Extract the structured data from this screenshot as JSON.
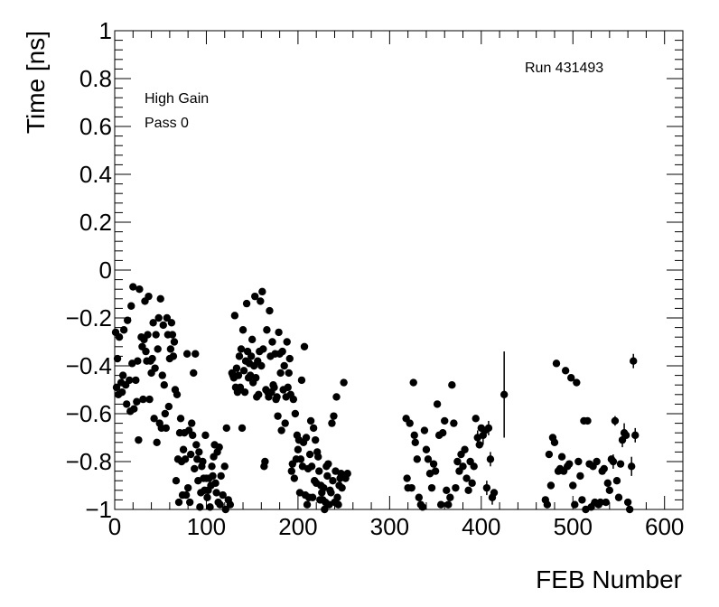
{
  "chart_data": {
    "type": "scatter",
    "xlabel": "FEB Number",
    "ylabel": "Time [ns]",
    "xlim": [
      0,
      620
    ],
    "ylim": [
      -1,
      1
    ],
    "xticks": [
      0,
      100,
      200,
      300,
      400,
      500,
      600
    ],
    "yticks": [
      -1,
      -0.8,
      -0.6,
      -0.4,
      -0.2,
      0,
      0.2,
      0.4,
      0.6,
      0.8,
      1
    ],
    "xtick_labels": [
      "0",
      "100",
      "200",
      "300",
      "400",
      "500",
      "600"
    ],
    "ytick_labels": [
      "−1",
      "−0.8",
      "−0.6",
      "−0.4",
      "−0.2",
      "0",
      "0.2",
      "0.4",
      "0.6",
      "0.8",
      "1"
    ],
    "annotations": {
      "run": "Run 431493",
      "gain": "High Gain",
      "pass": "Pass 0"
    },
    "grid": false,
    "marker_color": "#000000",
    "points": [
      [
        1,
        -0.26
      ],
      [
        2,
        -0.49
      ],
      [
        3,
        -0.37
      ],
      [
        4,
        -0.52
      ],
      [
        5,
        -0.28
      ],
      [
        7,
        -0.47
      ],
      [
        8,
        -0.51
      ],
      [
        9,
        -0.44
      ],
      [
        10,
        -0.25
      ],
      [
        12,
        -0.48
      ],
      [
        13,
        -0.56
      ],
      [
        14,
        -0.21
      ],
      [
        16,
        -0.46
      ],
      [
        17,
        -0.59
      ],
      [
        18,
        -0.15
      ],
      [
        19,
        -0.39
      ],
      [
        20,
        -0.07
      ],
      [
        21,
        -0.58
      ],
      [
        23,
        -0.46
      ],
      [
        24,
        -0.55
      ],
      [
        25,
        -0.38
      ],
      [
        26,
        -0.71
      ],
      [
        27,
        -0.08
      ],
      [
        29,
        -0.28
      ],
      [
        30,
        -0.32
      ],
      [
        31,
        -0.54
      ],
      [
        32,
        -0.29
      ],
      [
        33,
        -0.13
      ],
      [
        34,
        -0.34
      ],
      [
        35,
        -0.38
      ],
      [
        36,
        -0.27
      ],
      [
        37,
        -0.11
      ],
      [
        38,
        -0.54
      ],
      [
        39,
        -0.38
      ],
      [
        40,
        -0.43
      ],
      [
        41,
        -0.37
      ],
      [
        42,
        -0.22
      ],
      [
        43,
        -0.62
      ],
      [
        44,
        -0.41
      ],
      [
        45,
        -0.27
      ],
      [
        46,
        -0.72
      ],
      [
        47,
        -0.33
      ],
      [
        48,
        -0.2
      ],
      [
        49,
        -0.64
      ],
      [
        50,
        -0.12
      ],
      [
        51,
        -0.66
      ],
      [
        52,
        -0.44
      ],
      [
        53,
        -0.23
      ],
      [
        54,
        -0.48
      ],
      [
        55,
        -0.6
      ],
      [
        56,
        -0.66
      ],
      [
        57,
        -0.2
      ],
      [
        58,
        -0.27
      ],
      [
        59,
        -0.57
      ],
      [
        60,
        -0.37
      ],
      [
        61,
        -0.33
      ],
      [
        62,
        -0.22
      ],
      [
        63,
        -0.27
      ],
      [
        64,
        -0.36
      ],
      [
        65,
        -0.3
      ],
      [
        66,
        -0.5
      ],
      [
        67,
        -0.88
      ],
      [
        68,
        -0.52
      ],
      [
        69,
        -0.79
      ],
      [
        70,
        -0.97
      ],
      [
        71,
        -0.68
      ],
      [
        72,
        -0.62
      ],
      [
        73,
        -0.8
      ],
      [
        74,
        -0.94
      ],
      [
        75,
        -0.75
      ],
      [
        76,
        -0.68
      ],
      [
        77,
        -0.79
      ],
      [
        78,
        -0.94
      ],
      [
        79,
        -0.35
      ],
      [
        80,
        -0.91
      ],
      [
        81,
        -0.67
      ],
      [
        82,
        -0.97
      ],
      [
        83,
        -0.77
      ],
      [
        84,
        -0.64
      ],
      [
        85,
        -0.69
      ],
      [
        86,
        -0.43
      ],
      [
        87,
        -0.83
      ],
      [
        88,
        -0.35
      ],
      [
        89,
        -0.73
      ],
      [
        90,
        -0.79
      ],
      [
        91,
        -0.88
      ],
      [
        92,
        -0.76
      ],
      [
        93,
        -0.99
      ],
      [
        94,
        -0.93
      ],
      [
        95,
        -0.82
      ],
      [
        96,
        -0.8
      ],
      [
        97,
        -0.87
      ],
      [
        98,
        -0.92
      ],
      [
        99,
        -0.69
      ],
      [
        100,
        -0.87
      ],
      [
        101,
        -0.95
      ],
      [
        102,
        -0.92
      ],
      [
        103,
        -0.87
      ],
      [
        104,
        -0.99
      ],
      [
        105,
        -0.9
      ],
      [
        106,
        -0.82
      ],
      [
        107,
        -0.86
      ],
      [
        108,
        -0.78
      ],
      [
        109,
        -0.73
      ],
      [
        110,
        -0.89
      ],
      [
        111,
        -0.93
      ],
      [
        112,
        -0.76
      ],
      [
        113,
        -0.97
      ],
      [
        114,
        -0.74
      ],
      [
        115,
        -0.98
      ],
      [
        116,
        -0.86
      ],
      [
        118,
        -0.94
      ],
      [
        120,
        -0.82
      ],
      [
        121,
        -1.0
      ],
      [
        122,
        -0.66
      ],
      [
        124,
        -0.96
      ],
      [
        126,
        -0.98
      ],
      [
        128,
        -0.43
      ],
      [
        129,
        -0.44
      ],
      [
        130,
        -0.45
      ],
      [
        131,
        -0.19
      ],
      [
        132,
        -0.49
      ],
      [
        133,
        -0.41
      ],
      [
        134,
        -0.51
      ],
      [
        135,
        -0.44
      ],
      [
        136,
        -0.36
      ],
      [
        137,
        -0.49
      ],
      [
        138,
        -0.33
      ],
      [
        139,
        -0.66
      ],
      [
        140,
        -0.25
      ],
      [
        141,
        -0.42
      ],
      [
        142,
        -0.51
      ],
      [
        143,
        -0.38
      ],
      [
        144,
        -0.14
      ],
      [
        145,
        -0.34
      ],
      [
        146,
        -0.45
      ],
      [
        147,
        -0.39
      ],
      [
        148,
        -0.44
      ],
      [
        149,
        -0.36
      ],
      [
        150,
        -0.29
      ],
      [
        151,
        -0.47
      ],
      [
        152,
        -0.4
      ],
      [
        153,
        -0.11
      ],
      [
        154,
        -0.45
      ],
      [
        155,
        -0.53
      ],
      [
        156,
        -0.38
      ],
      [
        157,
        -0.52
      ],
      [
        158,
        -0.34
      ],
      [
        159,
        -0.13
      ],
      [
        160,
        -0.4
      ],
      [
        161,
        -0.09
      ],
      [
        162,
        -0.33
      ],
      [
        163,
        -0.82
      ],
      [
        164,
        -0.8
      ],
      [
        165,
        -0.5
      ],
      [
        166,
        -0.25
      ],
      [
        167,
        -0.51
      ],
      [
        168,
        -0.53
      ],
      [
        169,
        -0.17
      ],
      [
        170,
        -0.36
      ],
      [
        171,
        -0.51
      ],
      [
        172,
        -0.3
      ],
      [
        173,
        -0.48
      ],
      [
        174,
        -0.49
      ],
      [
        175,
        -0.35
      ],
      [
        176,
        -0.54
      ],
      [
        177,
        -0.53
      ],
      [
        178,
        -0.61
      ],
      [
        179,
        -0.26
      ],
      [
        180,
        -0.35
      ],
      [
        181,
        -0.43
      ],
      [
        182,
        -0.67
      ],
      [
        183,
        -0.34
      ],
      [
        184,
        -0.5
      ],
      [
        185,
        -0.4
      ],
      [
        186,
        -0.64
      ],
      [
        187,
        -0.53
      ],
      [
        188,
        -0.3
      ],
      [
        189,
        -0.49
      ],
      [
        190,
        -0.43
      ],
      [
        191,
        -0.37
      ],
      [
        192,
        -0.52
      ],
      [
        193,
        -0.84
      ],
      [
        194,
        -0.81
      ],
      [
        195,
        -0.54
      ],
      [
        196,
        -0.87
      ],
      [
        197,
        -0.6
      ],
      [
        198,
        -0.79
      ],
      [
        199,
        -0.69
      ],
      [
        200,
        -0.75
      ],
      [
        201,
        -0.71
      ],
      [
        202,
        -0.93
      ],
      [
        203,
        -0.79
      ],
      [
        204,
        -0.46
      ],
      [
        205,
        -0.82
      ],
      [
        206,
        -0.72
      ],
      [
        207,
        -0.32
      ],
      [
        208,
        -0.94
      ],
      [
        209,
        -0.7
      ],
      [
        210,
        -0.98
      ],
      [
        211,
        -0.83
      ],
      [
        212,
        -0.95
      ],
      [
        213,
        -0.77
      ],
      [
        214,
        -0.63
      ],
      [
        215,
        -0.82
      ],
      [
        216,
        -0.95
      ],
      [
        217,
        -0.66
      ],
      [
        218,
        -0.88
      ],
      [
        219,
        -0.71
      ],
      [
        220,
        -0.89
      ],
      [
        221,
        -0.76
      ],
      [
        222,
        -0.78
      ],
      [
        223,
        -0.84
      ],
      [
        224,
        -0.96
      ],
      [
        225,
        -0.9
      ],
      [
        226,
        -0.93
      ],
      [
        227,
        -0.96
      ],
      [
        228,
        -0.91
      ],
      [
        229,
        -1.0
      ],
      [
        230,
        -0.97
      ],
      [
        231,
        -0.82
      ],
      [
        232,
        -0.86
      ],
      [
        233,
        -0.81
      ],
      [
        234,
        -0.98
      ],
      [
        235,
        -0.92
      ],
      [
        236,
        -0.93
      ],
      [
        237,
        -0.64
      ],
      [
        238,
        -0.88
      ],
      [
        239,
        -0.61
      ],
      [
        240,
        -0.97
      ],
      [
        241,
        -0.84
      ],
      [
        242,
        -0.53
      ],
      [
        243,
        -0.95
      ],
      [
        244,
        -0.98
      ],
      [
        245,
        -0.9
      ],
      [
        246,
        -0.87
      ],
      [
        247,
        -0.85
      ],
      [
        248,
        -0.91
      ],
      [
        250,
        -0.47
      ],
      [
        252,
        -0.87
      ],
      [
        254,
        -0.85
      ],
      [
        318,
        -0.62
      ],
      [
        319,
        -0.87
      ],
      [
        320,
        -0.91
      ],
      [
        322,
        -0.64
      ],
      [
        324,
        -0.91
      ],
      [
        326,
        -0.47
      ],
      [
        327,
        -0.69
      ],
      [
        328,
        -0.72
      ],
      [
        330,
        -0.79
      ],
      [
        332,
        -0.95
      ],
      [
        334,
        -0.98
      ],
      [
        336,
        -0.99
      ],
      [
        338,
        -0.67
      ],
      [
        340,
        -0.75
      ],
      [
        342,
        -0.79
      ],
      [
        344,
        -0.85
      ],
      [
        346,
        -0.91
      ],
      [
        348,
        -0.81
      ],
      [
        350,
        -0.84
      ],
      [
        352,
        -0.56
      ],
      [
        354,
        -0.69
      ],
      [
        356,
        -0.98
      ],
      [
        358,
        -0.68
      ],
      [
        360,
        -0.63
      ],
      [
        362,
        -0.92
      ],
      [
        364,
        -0.98
      ],
      [
        366,
        -0.95
      ],
      [
        368,
        -0.48
      ],
      [
        370,
        -0.64
      ],
      [
        372,
        -0.91
      ],
      [
        374,
        -0.8
      ],
      [
        376,
        -0.84
      ],
      [
        378,
        -0.77
      ],
      [
        380,
        -0.82
      ],
      [
        382,
        -0.75
      ],
      [
        384,
        -0.87
      ],
      [
        386,
        -0.92
      ],
      [
        388,
        -0.8
      ],
      [
        390,
        -0.89
      ],
      [
        392,
        -0.82
      ],
      [
        394,
        -0.62
      ],
      [
        396,
        -0.7
      ],
      [
        398,
        -0.73
      ],
      [
        400,
        -0.66
      ],
      [
        402,
        -0.69
      ],
      [
        404,
        -0.67
      ],
      [
        406,
        -0.91
      ],
      [
        408,
        -0.66
      ],
      [
        410,
        -0.79
      ],
      [
        412,
        -0.95
      ],
      [
        414,
        -0.93
      ],
      [
        425,
        -0.52
      ],
      [
        470,
        -0.96
      ],
      [
        472,
        -0.98
      ],
      [
        474,
        -0.77
      ],
      [
        476,
        -0.9
      ],
      [
        478,
        -0.7
      ],
      [
        480,
        -0.72
      ],
      [
        482,
        -0.39
      ],
      [
        484,
        -0.84
      ],
      [
        486,
        -0.83
      ],
      [
        488,
        -0.78
      ],
      [
        490,
        -0.84
      ],
      [
        492,
        -0.42
      ],
      [
        494,
        -0.82
      ],
      [
        496,
        -0.81
      ],
      [
        498,
        -0.45
      ],
      [
        500,
        -0.9
      ],
      [
        502,
        -0.98
      ],
      [
        504,
        -0.47
      ],
      [
        506,
        -0.8
      ],
      [
        508,
        -0.86
      ],
      [
        510,
        -0.96
      ],
      [
        512,
        -0.63
      ],
      [
        514,
        -1.0
      ],
      [
        516,
        -0.63
      ],
      [
        518,
        -0.81
      ],
      [
        520,
        -0.99
      ],
      [
        522,
        -0.82
      ],
      [
        524,
        -0.97
      ],
      [
        526,
        -0.8
      ],
      [
        528,
        -0.98
      ],
      [
        530,
        -0.97
      ],
      [
        532,
        -0.84
      ],
      [
        534,
        -0.83
      ],
      [
        536,
        -0.97
      ],
      [
        538,
        -0.89
      ],
      [
        540,
        -0.92
      ],
      [
        542,
        -0.79
      ],
      [
        544,
        -0.8
      ],
      [
        546,
        -0.63
      ],
      [
        548,
        -0.88
      ],
      [
        550,
        -0.95
      ],
      [
        552,
        -0.81
      ],
      [
        554,
        -0.71
      ],
      [
        556,
        -0.68
      ],
      [
        558,
        -0.69
      ],
      [
        560,
        -0.97
      ],
      [
        562,
        -1.0
      ],
      [
        564,
        -0.82
      ],
      [
        566,
        -0.38
      ],
      [
        568,
        -0.69
      ]
    ],
    "errors": [
      [
        425,
        -0.52,
        0.18
      ],
      [
        566,
        -0.38,
        0.03
      ],
      [
        568,
        -0.69,
        0.03
      ],
      [
        564,
        -0.82,
        0.04
      ],
      [
        554,
        -0.71,
        0.03
      ],
      [
        546,
        -0.63,
        0.02
      ],
      [
        544,
        -0.8,
        0.03
      ],
      [
        408,
        -0.66,
        0.03
      ],
      [
        410,
        -0.79,
        0.03
      ],
      [
        402,
        -0.69,
        0.04
      ],
      [
        406,
        -0.91,
        0.03
      ],
      [
        412,
        -0.95,
        0.03
      ],
      [
        396,
        -0.7,
        0.03
      ],
      [
        556,
        -0.68,
        0.04
      ]
    ]
  }
}
